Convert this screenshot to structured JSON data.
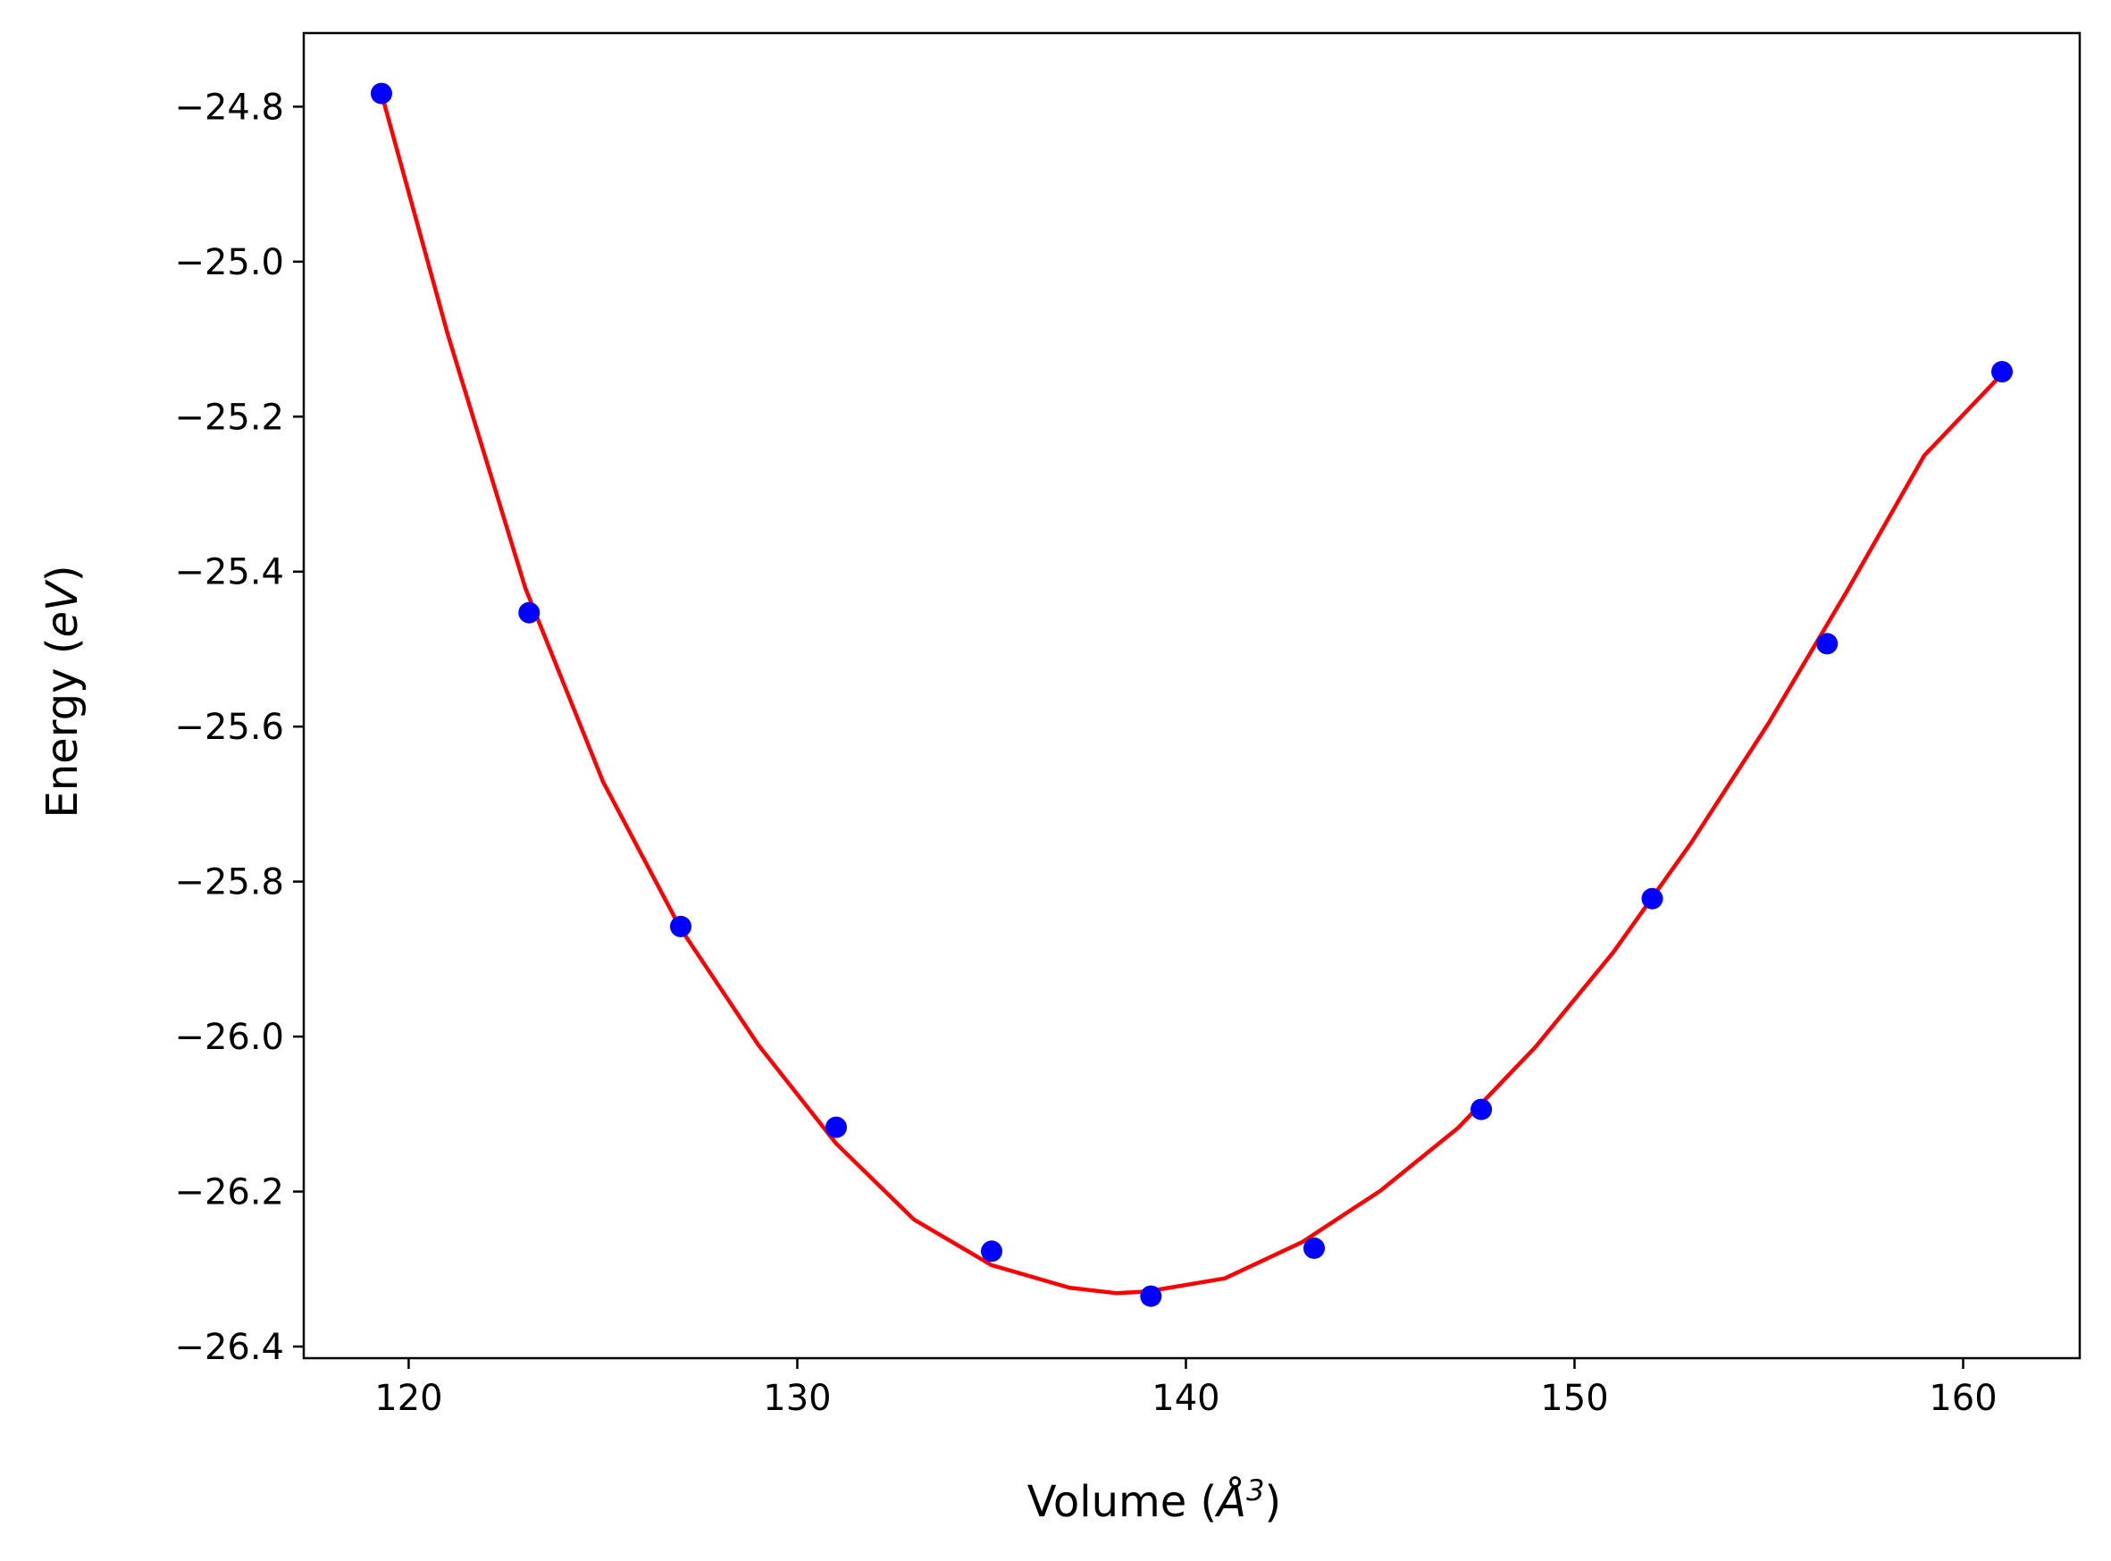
{
  "chart_data": {
    "type": "scatter",
    "title": "",
    "xlabel": "Volume (Å³)",
    "xlabel_prefix": "Volume (",
    "xlabel_symbol": "Å",
    "xlabel_exp": "3",
    "xlabel_suffix": ")",
    "ylabel": "Energy (eV)",
    "ylabel_prefix": "Energy (",
    "ylabel_unit": "eV",
    "ylabel_suffix": ")",
    "xlim": [
      117.3,
      163.0
    ],
    "ylim": [
      -26.415,
      -24.705
    ],
    "x_ticks": [
      120,
      130,
      140,
      150,
      160
    ],
    "x_tick_labels": [
      "120",
      "130",
      "140",
      "150",
      "160"
    ],
    "y_ticks": [
      -24.8,
      -25.0,
      -25.2,
      -25.4,
      -25.6,
      -25.8,
      -26.0,
      -26.2,
      -26.4
    ],
    "y_tick_labels": [
      "−24.8",
      "−25.0",
      "−25.2",
      "−25.4",
      "−25.6",
      "−25.8",
      "−26.0",
      "−26.2",
      "−26.4"
    ],
    "grid": false,
    "series": [
      {
        "kind": "points",
        "color": "#0000ff",
        "x": [
          119.3,
          123.1,
          127.0,
          131.0,
          135.0,
          139.1,
          143.3,
          147.6,
          152.0,
          156.5,
          161.0
        ],
        "y": [
          -24.783,
          -25.453,
          -25.858,
          -26.117,
          -26.277,
          -26.335,
          -26.273,
          -26.094,
          -25.822,
          -25.493,
          -25.142
        ]
      },
      {
        "kind": "fit-curve",
        "color": "#ff0000",
        "x": [
          119.3,
          121.0,
          123.0,
          125.0,
          127.0,
          129.0,
          131.0,
          133.0,
          135.0,
          137.0,
          138.2,
          139.0,
          141.0,
          143.0,
          145.0,
          147.0,
          149.0,
          151.0,
          153.0,
          155.0,
          157.0,
          159.0,
          161.0
        ],
        "y": [
          -24.783,
          -25.093,
          -25.421,
          -25.671,
          -25.861,
          -26.011,
          -26.138,
          -26.236,
          -26.295,
          -26.324,
          -26.331,
          -26.329,
          -26.312,
          -26.265,
          -26.199,
          -26.118,
          -26.013,
          -25.891,
          -25.75,
          -25.595,
          -25.426,
          -25.25,
          -25.145
        ]
      }
    ]
  }
}
